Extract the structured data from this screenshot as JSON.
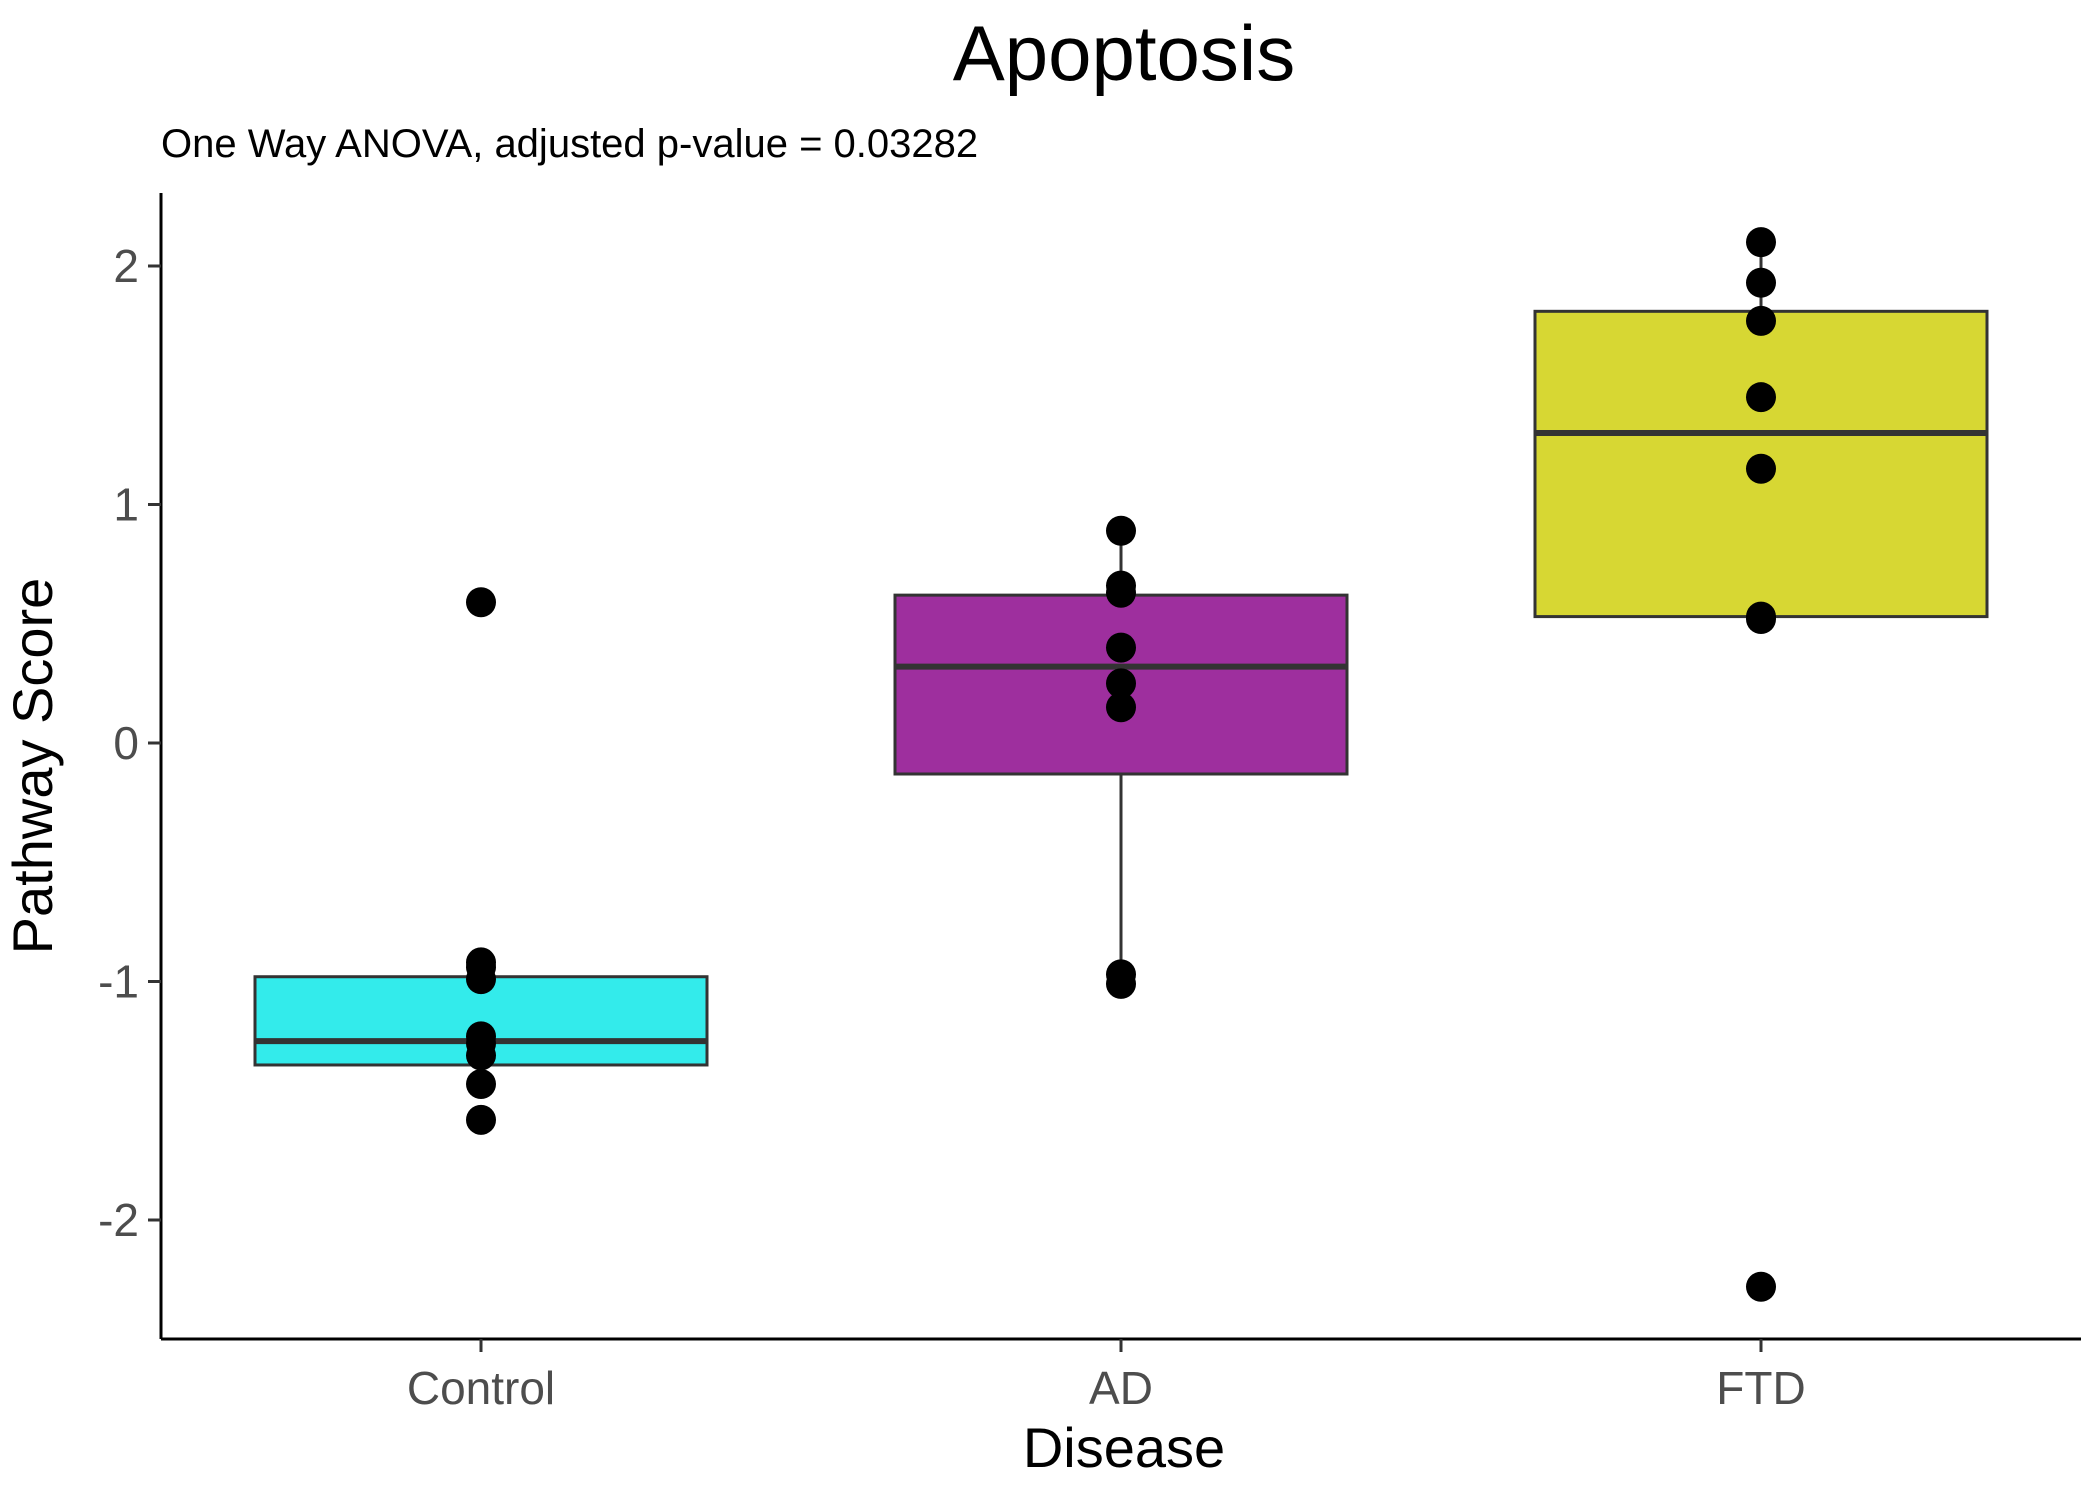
{
  "chart_data": {
    "type": "box",
    "title": "Apoptosis",
    "subtitle": "One Way ANOVA, adjusted p-value = 0.03282",
    "xlabel": "Disease",
    "ylabel": "Pathway Score",
    "ylim": [
      -2.5,
      2.3
    ],
    "yticks": [
      -2,
      -1,
      0,
      1,
      2
    ],
    "ytick_labels": [
      "-2",
      "-1",
      "0",
      "1",
      "2"
    ],
    "grid": false,
    "legend": "none",
    "categories": [
      "Control",
      "AD",
      "FTD"
    ],
    "boxes": [
      {
        "category": "Control",
        "color": "#33ebeb",
        "whisker_low": -1.35,
        "q1": -1.35,
        "median": -1.25,
        "q3": -0.98,
        "whisker_high": -0.93,
        "points": [
          0.59,
          -0.92,
          -0.94,
          -0.99,
          -1.23,
          -1.26,
          -1.31,
          -1.43,
          -1.58
        ]
      },
      {
        "category": "AD",
        "color": "#9e2f9e",
        "whisker_low": -1.01,
        "q1": -0.13,
        "median": 0.32,
        "q3": 0.62,
        "whisker_high": 0.89,
        "points": [
          0.89,
          0.66,
          0.63,
          0.4,
          0.25,
          0.15,
          -0.97,
          -1.01
        ]
      },
      {
        "category": "FTD",
        "color": "#d7d733",
        "whisker_low": 0.53,
        "q1": 0.53,
        "median": 1.3,
        "q3": 1.81,
        "whisker_high": 2.1,
        "points": [
          2.1,
          1.93,
          1.77,
          1.45,
          1.15,
          0.53,
          0.52,
          -2.28
        ]
      }
    ]
  }
}
